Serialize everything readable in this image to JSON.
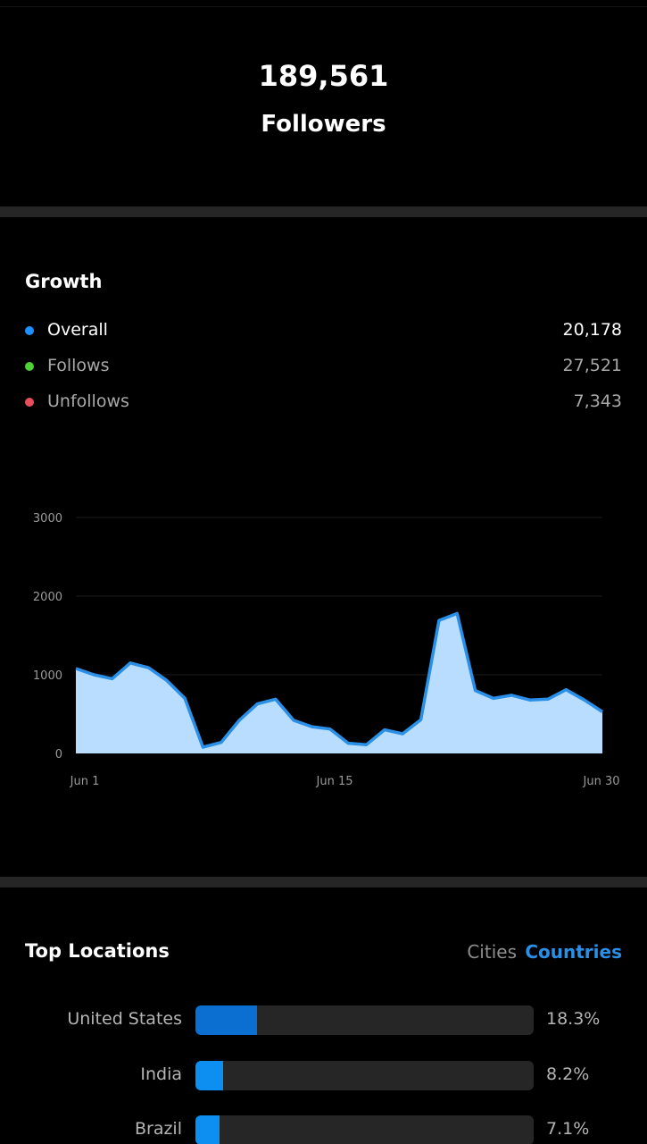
{
  "header": {
    "followers_count": "189,561",
    "followers_label": "Followers"
  },
  "growth": {
    "title": "Growth",
    "legend": [
      {
        "name": "Overall",
        "value": "20,178",
        "color": "#1e90ff",
        "text_color": "#ffffff"
      },
      {
        "name": "Follows",
        "value": "27,521",
        "color": "#4cd137",
        "text_color": "#a8a8a8"
      },
      {
        "name": "Unfollows",
        "value": "7,343",
        "color": "#e84e5a",
        "text_color": "#a8a8a8"
      }
    ]
  },
  "chart_data": {
    "type": "area",
    "ylim": [
      0,
      3000
    ],
    "yticks": [
      "3000",
      "2000",
      "1000",
      "0"
    ],
    "ytick_values": [
      3000,
      2000,
      1000,
      0
    ],
    "xticks": [
      "Jun 1",
      "Jun 15",
      "Jun 30"
    ],
    "xtick_days": [
      1,
      15,
      30
    ],
    "x": [
      1,
      2,
      3,
      4,
      5,
      6,
      7,
      8,
      9,
      10,
      11,
      12,
      13,
      14,
      15,
      16,
      17,
      18,
      19,
      20,
      21,
      22,
      23,
      24,
      25,
      26,
      27,
      28,
      29,
      30
    ],
    "series": [
      {
        "values": [
          1080,
          1000,
          950,
          1150,
          1090,
          930,
          700,
          80,
          140,
          420,
          630,
          690,
          420,
          340,
          310,
          130,
          110,
          300,
          250,
          430,
          1690,
          1780,
          800,
          700,
          740,
          680,
          690,
          810,
          680,
          530
        ],
        "line_color": "#2a8fe6",
        "fill_color": "#b9ddff"
      }
    ],
    "grid": true
  },
  "locations": {
    "title": "Top Locations",
    "tabs": {
      "cities": "Cities",
      "countries": "Countries"
    },
    "active_tab": "countries",
    "rows": [
      {
        "name": "United States",
        "pct_label": "18.3%",
        "value": 18.3,
        "color": "#0a6fd1"
      },
      {
        "name": "India",
        "pct_label": "8.2%",
        "value": 8.2,
        "color": "#0d8ff2"
      },
      {
        "name": "Brazil",
        "pct_label": "7.1%",
        "value": 7.1,
        "color": "#0d8ff2"
      }
    ],
    "scale_max": 100
  }
}
